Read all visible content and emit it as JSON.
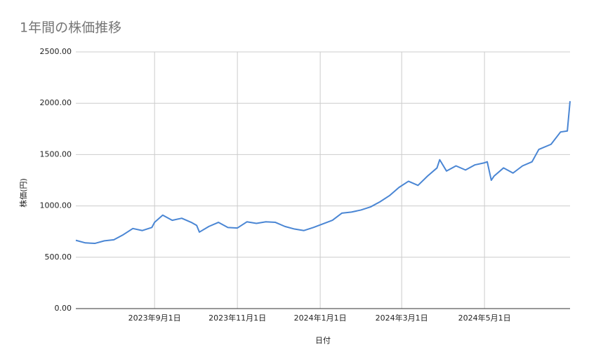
{
  "chart_data": {
    "type": "line",
    "title": "1年間の株価推移",
    "x_label": "日付",
    "y_label": "株価(円)",
    "x": [
      "2023-07-05",
      "2023-07-12",
      "2023-07-19",
      "2023-07-26",
      "2023-08-02",
      "2023-08-09",
      "2023-08-16",
      "2023-08-23",
      "2023-08-30",
      "2023-09-01",
      "2023-09-07",
      "2023-09-14",
      "2023-09-21",
      "2023-09-28",
      "2023-10-02",
      "2023-10-04",
      "2023-10-11",
      "2023-10-18",
      "2023-10-25",
      "2023-11-01",
      "2023-11-08",
      "2023-11-15",
      "2023-11-22",
      "2023-11-29",
      "2023-12-06",
      "2023-12-13",
      "2023-12-20",
      "2023-12-27",
      "2024-01-03",
      "2024-01-10",
      "2024-01-17",
      "2024-01-24",
      "2024-01-31",
      "2024-02-07",
      "2024-02-14",
      "2024-02-21",
      "2024-02-28",
      "2024-03-06",
      "2024-03-13",
      "2024-03-20",
      "2024-03-27",
      "2024-03-29",
      "2024-04-03",
      "2024-04-10",
      "2024-04-17",
      "2024-04-24",
      "2024-05-01",
      "2024-05-03",
      "2024-05-06",
      "2024-05-08",
      "2024-05-15",
      "2024-05-22",
      "2024-05-29",
      "2024-06-05",
      "2024-06-10",
      "2024-06-19",
      "2024-06-26",
      "2024-07-01",
      "2024-07-03"
    ],
    "series": [
      {
        "name": "株価",
        "color": "#4a86d4",
        "values": [
          665,
          640,
          635,
          660,
          670,
          720,
          780,
          760,
          790,
          840,
          910,
          860,
          880,
          840,
          810,
          745,
          800,
          840,
          790,
          785,
          845,
          830,
          845,
          840,
          800,
          775,
          760,
          790,
          825,
          860,
          930,
          940,
          960,
          990,
          1040,
          1100,
          1180,
          1240,
          1200,
          1290,
          1370,
          1450,
          1340,
          1390,
          1350,
          1400,
          1420,
          1430,
          1250,
          1290,
          1370,
          1320,
          1390,
          1430,
          1550,
          1600,
          1720,
          1730,
          2020
        ]
      }
    ],
    "xlim": [
      "2023-07-05",
      "2024-07-03"
    ],
    "xticks": [
      {
        "value": "2023-09-01",
        "label": "2023年9月1日"
      },
      {
        "value": "2023-11-01",
        "label": "2023年11月1日"
      },
      {
        "value": "2024-01-01",
        "label": "2024年1月1日"
      },
      {
        "value": "2024-03-01",
        "label": "2024年3月1日"
      },
      {
        "value": "2024-05-01",
        "label": "2024年5月1日"
      }
    ],
    "ylim": [
      0,
      2500
    ],
    "yticks": [
      {
        "value": 0,
        "label": "0.00"
      },
      {
        "value": 500,
        "label": "500.00"
      },
      {
        "value": 1000,
        "label": "1000.00"
      },
      {
        "value": 1500,
        "label": "1500.00"
      },
      {
        "value": 2000,
        "label": "2000.00"
      },
      {
        "value": 2500,
        "label": "2500.00"
      }
    ],
    "grid": true
  }
}
